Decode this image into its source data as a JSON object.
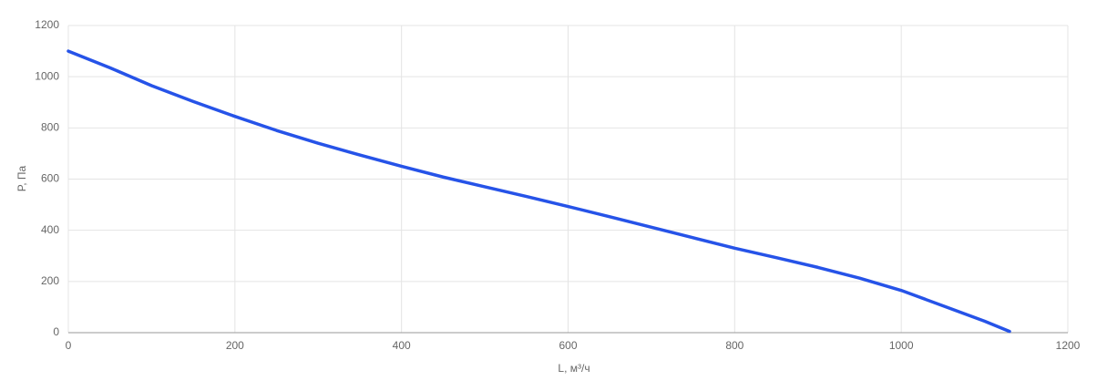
{
  "chart_data": {
    "type": "line",
    "x_label": "L, м³/ч",
    "y_label": "P, Па",
    "x": [
      0,
      50,
      100,
      150,
      200,
      250,
      300,
      350,
      400,
      450,
      500,
      550,
      600,
      650,
      700,
      750,
      800,
      850,
      900,
      950,
      1000,
      1050,
      1100,
      1130
    ],
    "series": [
      {
        "color": "#2653e8",
        "values": [
          1100,
          1035,
          965,
          903,
          845,
          790,
          740,
          694,
          650,
          608,
          570,
          532,
          493,
          453,
          412,
          371,
          330,
          293,
          255,
          213,
          165,
          105,
          45,
          5
        ]
      }
    ],
    "xlim": [
      0,
      1200
    ],
    "xticks": [
      0,
      200,
      400,
      600,
      800,
      1000,
      1200
    ],
    "ylim": [
      0,
      1200
    ],
    "yticks": [
      0,
      200,
      400,
      600,
      800,
      1000,
      1200
    ],
    "grid": true
  }
}
